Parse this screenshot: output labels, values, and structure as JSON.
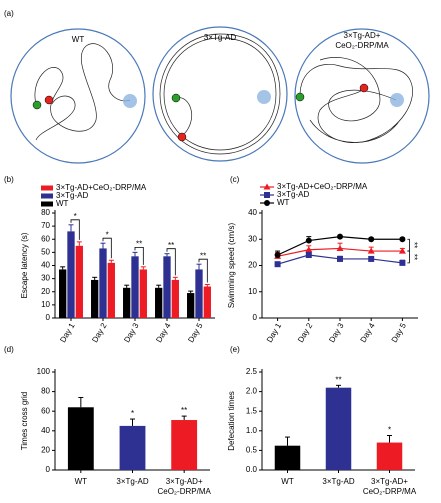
{
  "panel_a": {
    "label": "(a)",
    "titles": [
      "WT",
      "3×Tg-AD",
      [
        "3×Tg-AD+",
        "CeO₂-DRP/MA"
      ]
    ]
  },
  "chart_data": [
    {
      "type": "bar",
      "label": "(b)",
      "ylabel": "Escape latency (s)",
      "categories": [
        "Day 1",
        "Day 2",
        "Day 3",
        "Day 4",
        "Day 5"
      ],
      "series": [
        {
          "name": "3×Tg-AD+CeO₂-DRP/MA",
          "color": "#ed1c24",
          "values": [
            55,
            42,
            37,
            29,
            24
          ],
          "errors": [
            3,
            2,
            2,
            2,
            1.5
          ]
        },
        {
          "name": "3×Tg-AD",
          "color": "#2e3192",
          "values": [
            66,
            53,
            47,
            47,
            37
          ],
          "errors": [
            5,
            4,
            3,
            2,
            4
          ]
        },
        {
          "name": "WT",
          "color": "#000000",
          "values": [
            37,
            29,
            23,
            23,
            19
          ],
          "errors": [
            2,
            2,
            2,
            2,
            1.5
          ]
        }
      ],
      "significance": [
        "*",
        "*",
        "**",
        "**",
        "**"
      ],
      "ylim": [
        0,
        80
      ],
      "yticks": [
        0,
        10,
        20,
        30,
        40,
        50,
        60,
        70,
        80
      ]
    },
    {
      "type": "line",
      "label": "(c)",
      "ylabel": "Swimming speed (cm/s)",
      "categories": [
        "Day 1",
        "Day 2",
        "Day 3",
        "Day 4",
        "Day 5"
      ],
      "series": [
        {
          "name": "3×Tg-AD+CeO₂-DRP/MA",
          "color": "#ed1c24",
          "marker": "triangle",
          "values": [
            23.5,
            26,
            26.5,
            25.5,
            25.5
          ],
          "errors": [
            1.5,
            1.5,
            2,
            1.5,
            1
          ]
        },
        {
          "name": "3×Tg-AD",
          "color": "#2e3192",
          "marker": "square",
          "values": [
            20.5,
            24,
            22.5,
            22.5,
            21
          ],
          "errors": [
            0.5,
            1,
            1,
            0.8,
            1
          ]
        },
        {
          "name": "WT",
          "color": "#000000",
          "marker": "circle",
          "values": [
            24,
            29.5,
            31,
            30,
            30
          ],
          "errors": [
            1.5,
            1.5,
            0.5,
            0.5,
            0.5
          ]
        }
      ],
      "significance": [
        "**",
        "**"
      ],
      "ylim": [
        0,
        40
      ],
      "yticks": [
        0,
        10,
        20,
        30,
        40
      ]
    },
    {
      "type": "bar",
      "label": "(d)",
      "ylabel": "Times cross grid",
      "categories": [
        "WT",
        "3×Tg-AD",
        [
          "3×Tg-AD+",
          "CeO₂-DRP/MA"
        ]
      ],
      "values": [
        64,
        45,
        51
      ],
      "errors": [
        10,
        7,
        4
      ],
      "colors": [
        "#000000",
        "#2e3192",
        "#ed1c24"
      ],
      "significance": [
        {
          "index": 1,
          "text": "*"
        },
        {
          "index": 2,
          "text": "**"
        }
      ],
      "ylim": [
        0,
        100
      ],
      "yticks": [
        0,
        20,
        40,
        60,
        80,
        100
      ]
    },
    {
      "type": "bar",
      "label": "(e)",
      "ylabel": "Defecation times",
      "categories": [
        "WT",
        "3×Tg-AD",
        [
          "3×Tg-AD+",
          "CeO₂-DRP/MA"
        ]
      ],
      "values": [
        0.62,
        2.1,
        0.7
      ],
      "errors": [
        0.22,
        0.06,
        0.18
      ],
      "colors": [
        "#000000",
        "#2e3192",
        "#ed1c24"
      ],
      "significance": [
        {
          "index": 1,
          "text": "**"
        },
        {
          "index": 2,
          "text": "*"
        }
      ],
      "ylim": [
        0,
        2.5
      ],
      "yticks": [
        {
          "value": 0,
          "label": "0.0"
        },
        0.5,
        {
          "value": 1,
          "label": "1.0"
        },
        1.5,
        {
          "value": 2,
          "label": "2.0"
        },
        2.5
      ]
    }
  ]
}
